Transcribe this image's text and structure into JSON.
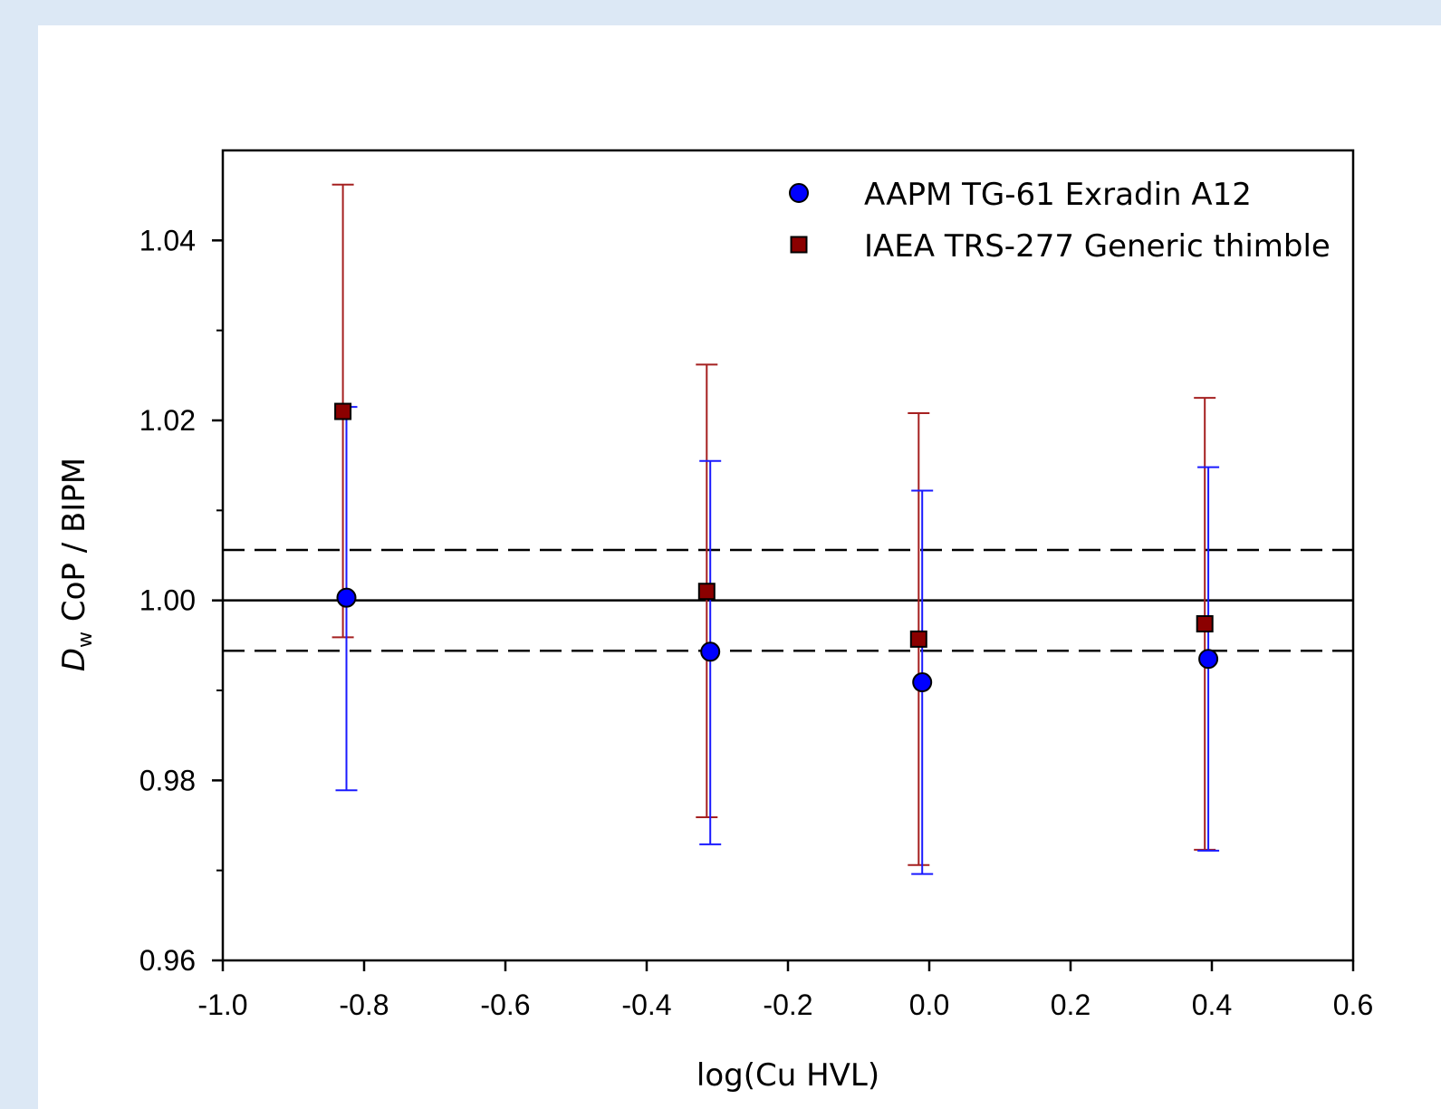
{
  "chart_data": {
    "type": "scatter",
    "xlabel": "log(Cu HVL)",
    "ylabel": {
      "italic": "D",
      "subscript": "w",
      "rest": " CoP / BIPM"
    },
    "xlim": [
      -1.0,
      0.6
    ],
    "ylim": [
      0.96,
      1.05
    ],
    "x_ticks": [
      "-1.0",
      "-0.8",
      "-0.6",
      "-0.4",
      "-0.2",
      "0.0",
      "0.2",
      "0.4",
      "0.6"
    ],
    "x_tick_values": [
      -1.0,
      -0.8,
      -0.6,
      -0.4,
      -0.2,
      0.0,
      0.2,
      0.4,
      0.6
    ],
    "y_ticks": [
      "0.96",
      "0.98",
      "1.00",
      "1.02",
      "1.04"
    ],
    "y_tick_values": [
      0.96,
      0.98,
      1.0,
      1.02,
      1.04
    ],
    "y_minor_tick_values": [
      0.97,
      0.99,
      1.01,
      1.03
    ],
    "grid": false,
    "legend_position": "top-right",
    "reference_lines": [
      {
        "y": 1.0,
        "style": "solid"
      },
      {
        "y": 1.0056,
        "style": "dashed"
      },
      {
        "y": 0.9944,
        "style": "dashed"
      }
    ],
    "series": [
      {
        "name": "AAPM TG-61 Exradin A12",
        "marker": "circle",
        "color": "#0000ff",
        "errorbar_color": "#1a1aff",
        "x": [
          -0.825,
          -0.31,
          -0.01,
          0.395
        ],
        "y": [
          1.0003,
          0.9943,
          0.9909,
          0.9935
        ],
        "yerr_upper": [
          1.0215,
          1.0155,
          1.0122,
          1.0148
        ],
        "yerr_lower": [
          0.9789,
          0.9729,
          0.9696,
          0.9722
        ]
      },
      {
        "name": "IAEA TRS-277 Generic thimble",
        "marker": "square",
        "color": "#8b0000",
        "errorbar_color": "#a52020",
        "x": [
          -0.83,
          -0.315,
          -0.015,
          0.39
        ],
        "y": [
          1.021,
          1.001,
          0.9957,
          0.9974
        ],
        "yerr_upper": [
          1.0462,
          1.0262,
          1.0208,
          1.0225
        ],
        "yerr_lower": [
          0.9959,
          0.9759,
          0.9706,
          0.9723
        ]
      }
    ]
  }
}
